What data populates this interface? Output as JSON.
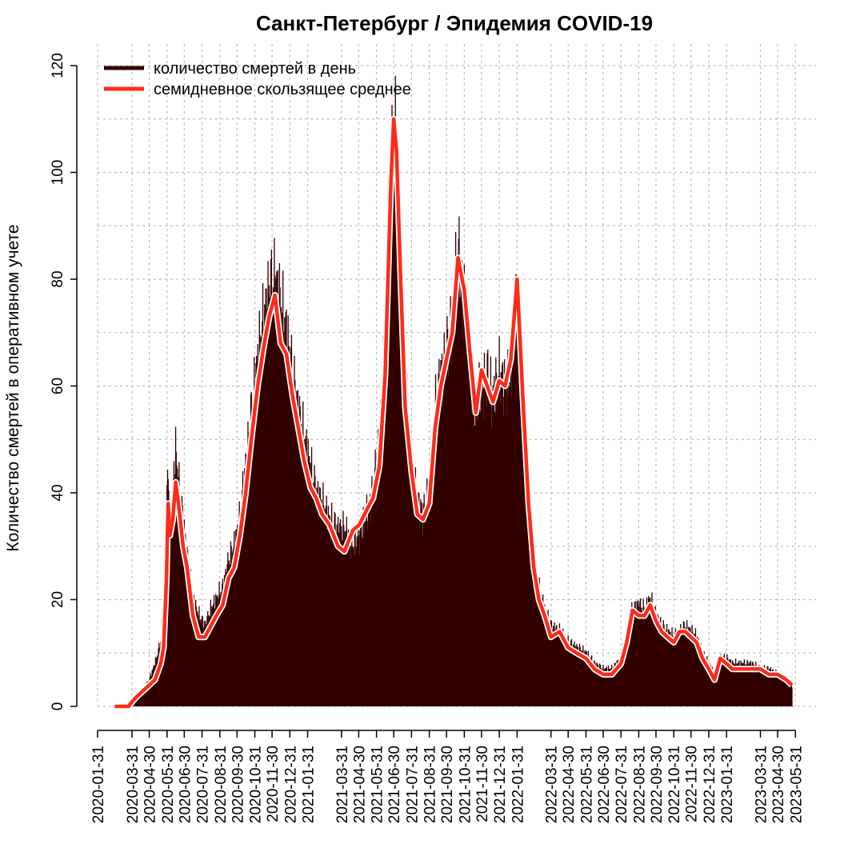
{
  "chart_data": {
    "type": "bar",
    "title": "Санкт-Петербург / Эпидемия COVID-19",
    "xlabel": "",
    "ylabel": "Количество смертей в оперативном учете",
    "x_range": [
      "2020-01-31",
      "2023-06-01"
    ],
    "ylim": [
      0,
      120
    ],
    "y_ticks": [
      0,
      20,
      40,
      60,
      80,
      100,
      120
    ],
    "x_ticks": [
      "2020-01-31",
      "2020-03-31",
      "2020-04-30",
      "2020-05-31",
      "2020-06-30",
      "2020-07-31",
      "2020-08-31",
      "2020-09-30",
      "2020-10-31",
      "2020-11-30",
      "2020-12-31",
      "2021-01-31",
      "2021-03-31",
      "2021-04-30",
      "2021-05-31",
      "2021-06-30",
      "2021-07-31",
      "2021-08-31",
      "2021-09-30",
      "2021-10-31",
      "2021-11-30",
      "2021-12-31",
      "2022-01-31",
      "2022-03-31",
      "2022-04-30",
      "2022-05-31",
      "2022-06-30",
      "2022-07-31",
      "2022-08-31",
      "2022-09-30",
      "2022-10-31",
      "2022-11-30",
      "2022-12-31",
      "2023-01-31",
      "2023-03-31",
      "2023-04-30",
      "2023-05-31"
    ],
    "grid": true,
    "legend_position": "top-left",
    "colors": {
      "daily": "#330000",
      "average": "#ff2a1a"
    },
    "series": [
      {
        "name": "количество смертей в день",
        "kind": "bar",
        "points": [
          [
            "2020-03-01",
            0
          ],
          [
            "2020-03-15",
            0
          ],
          [
            "2020-03-25",
            0
          ],
          [
            "2020-04-01",
            1
          ],
          [
            "2020-04-10",
            2
          ],
          [
            "2020-04-20",
            3
          ],
          [
            "2020-04-30",
            5
          ],
          [
            "2020-05-10",
            8
          ],
          [
            "2020-05-20",
            12
          ],
          [
            "2020-05-25",
            20
          ],
          [
            "2020-05-30",
            35
          ],
          [
            "2020-06-02",
            45
          ],
          [
            "2020-06-05",
            32
          ],
          [
            "2020-06-10",
            40
          ],
          [
            "2020-06-15",
            48
          ],
          [
            "2020-06-20",
            42
          ],
          [
            "2020-06-28",
            35
          ],
          [
            "2020-07-05",
            28
          ],
          [
            "2020-07-15",
            20
          ],
          [
            "2020-07-25",
            17
          ],
          [
            "2020-08-05",
            15
          ],
          [
            "2020-08-15",
            18
          ],
          [
            "2020-08-25",
            20
          ],
          [
            "2020-09-05",
            22
          ],
          [
            "2020-09-15",
            27
          ],
          [
            "2020-09-25",
            30
          ],
          [
            "2020-10-05",
            35
          ],
          [
            "2020-10-15",
            45
          ],
          [
            "2020-10-25",
            55
          ],
          [
            "2020-11-05",
            65
          ],
          [
            "2020-11-15",
            72
          ],
          [
            "2020-11-25",
            78
          ],
          [
            "2020-12-05",
            80
          ],
          [
            "2020-12-15",
            75
          ],
          [
            "2020-12-25",
            70
          ],
          [
            "2021-01-05",
            62
          ],
          [
            "2021-01-15",
            55
          ],
          [
            "2021-01-25",
            50
          ],
          [
            "2021-02-05",
            45
          ],
          [
            "2021-02-15",
            40
          ],
          [
            "2021-02-25",
            38
          ],
          [
            "2021-03-10",
            35
          ],
          [
            "2021-03-25",
            33
          ],
          [
            "2021-04-05",
            33
          ],
          [
            "2021-04-20",
            30
          ],
          [
            "2021-05-01",
            32
          ],
          [
            "2021-05-15",
            36
          ],
          [
            "2021-05-25",
            40
          ],
          [
            "2021-06-05",
            50
          ],
          [
            "2021-06-15",
            70
          ],
          [
            "2021-06-25",
            100
          ],
          [
            "2021-06-30",
            108
          ],
          [
            "2021-07-05",
            105
          ],
          [
            "2021-07-12",
            85
          ],
          [
            "2021-07-20",
            60
          ],
          [
            "2021-07-31",
            45
          ],
          [
            "2021-08-10",
            38
          ],
          [
            "2021-08-20",
            36
          ],
          [
            "2021-08-31",
            40
          ],
          [
            "2021-09-10",
            55
          ],
          [
            "2021-09-20",
            62
          ],
          [
            "2021-09-30",
            66
          ],
          [
            "2021-10-10",
            72
          ],
          [
            "2021-10-20",
            85
          ],
          [
            "2021-10-31",
            76
          ],
          [
            "2021-11-10",
            65
          ],
          [
            "2021-11-20",
            55
          ],
          [
            "2021-11-30",
            60
          ],
          [
            "2021-12-10",
            62
          ],
          [
            "2021-12-20",
            58
          ],
          [
            "2021-12-31",
            62
          ],
          [
            "2022-01-10",
            60
          ],
          [
            "2022-01-20",
            62
          ],
          [
            "2022-01-31",
            78
          ],
          [
            "2022-02-10",
            60
          ],
          [
            "2022-02-20",
            40
          ],
          [
            "2022-03-01",
            28
          ],
          [
            "2022-03-10",
            22
          ],
          [
            "2022-03-20",
            18
          ],
          [
            "2022-03-31",
            15
          ],
          [
            "2022-04-15",
            14
          ],
          [
            "2022-04-30",
            12
          ],
          [
            "2022-05-15",
            11
          ],
          [
            "2022-05-31",
            10
          ],
          [
            "2022-06-15",
            8
          ],
          [
            "2022-06-30",
            7
          ],
          [
            "2022-07-15",
            7
          ],
          [
            "2022-07-31",
            9
          ],
          [
            "2022-08-10",
            13
          ],
          [
            "2022-08-20",
            18
          ],
          [
            "2022-08-31",
            19
          ],
          [
            "2022-09-10",
            18
          ],
          [
            "2022-09-20",
            20
          ],
          [
            "2022-09-30",
            17
          ],
          [
            "2022-10-10",
            15
          ],
          [
            "2022-10-20",
            14
          ],
          [
            "2022-10-31",
            13
          ],
          [
            "2022-11-10",
            14
          ],
          [
            "2022-11-20",
            15
          ],
          [
            "2022-11-30",
            14
          ],
          [
            "2022-12-10",
            13
          ],
          [
            "2022-12-20",
            10
          ],
          [
            "2022-12-31",
            8
          ],
          [
            "2023-01-10",
            6
          ],
          [
            "2023-01-20",
            9
          ],
          [
            "2023-01-31",
            9
          ],
          [
            "2023-02-10",
            8
          ],
          [
            "2023-02-28",
            8
          ],
          [
            "2023-03-15",
            8
          ],
          [
            "2023-03-31",
            7
          ],
          [
            "2023-04-15",
            7
          ],
          [
            "2023-04-30",
            6
          ],
          [
            "2023-05-15",
            5
          ],
          [
            "2023-05-25",
            4
          ]
        ]
      },
      {
        "name": "семидневное скользящее среднее",
        "kind": "line",
        "points": [
          [
            "2020-03-01",
            0
          ],
          [
            "2020-03-15",
            0
          ],
          [
            "2020-03-25",
            0
          ],
          [
            "2020-04-01",
            1
          ],
          [
            "2020-04-10",
            2
          ],
          [
            "2020-04-20",
            3
          ],
          [
            "2020-04-30",
            4
          ],
          [
            "2020-05-10",
            5
          ],
          [
            "2020-05-20",
            8
          ],
          [
            "2020-05-25",
            11
          ],
          [
            "2020-05-30",
            24
          ],
          [
            "2020-06-02",
            38
          ],
          [
            "2020-06-05",
            32
          ],
          [
            "2020-06-10",
            35
          ],
          [
            "2020-06-15",
            42
          ],
          [
            "2020-06-20",
            38
          ],
          [
            "2020-06-28",
            30
          ],
          [
            "2020-07-05",
            26
          ],
          [
            "2020-07-15",
            17
          ],
          [
            "2020-07-25",
            13
          ],
          [
            "2020-08-05",
            13
          ],
          [
            "2020-08-15",
            15
          ],
          [
            "2020-08-25",
            17
          ],
          [
            "2020-09-05",
            19
          ],
          [
            "2020-09-15",
            24
          ],
          [
            "2020-09-25",
            26
          ],
          [
            "2020-10-05",
            32
          ],
          [
            "2020-10-15",
            40
          ],
          [
            "2020-10-25",
            50
          ],
          [
            "2020-11-05",
            60
          ],
          [
            "2020-11-15",
            67
          ],
          [
            "2020-11-25",
            73
          ],
          [
            "2020-12-05",
            77
          ],
          [
            "2020-12-15",
            68
          ],
          [
            "2020-12-25",
            66
          ],
          [
            "2021-01-05",
            58
          ],
          [
            "2021-01-15",
            52
          ],
          [
            "2021-01-25",
            46
          ],
          [
            "2021-02-05",
            41
          ],
          [
            "2021-02-15",
            39
          ],
          [
            "2021-02-25",
            36
          ],
          [
            "2021-03-10",
            34
          ],
          [
            "2021-03-25",
            30
          ],
          [
            "2021-04-05",
            29
          ],
          [
            "2021-04-20",
            33
          ],
          [
            "2021-05-01",
            34
          ],
          [
            "2021-05-15",
            37
          ],
          [
            "2021-05-25",
            39
          ],
          [
            "2021-06-05",
            45
          ],
          [
            "2021-06-15",
            62
          ],
          [
            "2021-06-25",
            98
          ],
          [
            "2021-06-30",
            110
          ],
          [
            "2021-07-05",
            104
          ],
          [
            "2021-07-12",
            80
          ],
          [
            "2021-07-20",
            56
          ],
          [
            "2021-07-31",
            44
          ],
          [
            "2021-08-10",
            36
          ],
          [
            "2021-08-20",
            35
          ],
          [
            "2021-08-31",
            38
          ],
          [
            "2021-09-10",
            52
          ],
          [
            "2021-09-20",
            60
          ],
          [
            "2021-09-30",
            65
          ],
          [
            "2021-10-10",
            70
          ],
          [
            "2021-10-20",
            84
          ],
          [
            "2021-10-31",
            78
          ],
          [
            "2021-11-10",
            66
          ],
          [
            "2021-11-20",
            55
          ],
          [
            "2021-11-30",
            63
          ],
          [
            "2021-12-10",
            60
          ],
          [
            "2021-12-20",
            57
          ],
          [
            "2021-12-31",
            61
          ],
          [
            "2022-01-10",
            60
          ],
          [
            "2022-01-20",
            65
          ],
          [
            "2022-01-31",
            80
          ],
          [
            "2022-02-10",
            58
          ],
          [
            "2022-02-20",
            38
          ],
          [
            "2022-03-01",
            26
          ],
          [
            "2022-03-10",
            20
          ],
          [
            "2022-03-20",
            17
          ],
          [
            "2022-03-31",
            13
          ],
          [
            "2022-04-15",
            14
          ],
          [
            "2022-04-30",
            11
          ],
          [
            "2022-05-15",
            10
          ],
          [
            "2022-05-31",
            9
          ],
          [
            "2022-06-15",
            7
          ],
          [
            "2022-06-30",
            6
          ],
          [
            "2022-07-15",
            6
          ],
          [
            "2022-07-31",
            8
          ],
          [
            "2022-08-10",
            12
          ],
          [
            "2022-08-20",
            18
          ],
          [
            "2022-08-31",
            17
          ],
          [
            "2022-09-10",
            17
          ],
          [
            "2022-09-20",
            19
          ],
          [
            "2022-09-30",
            16
          ],
          [
            "2022-10-10",
            14
          ],
          [
            "2022-10-20",
            13
          ],
          [
            "2022-10-31",
            12
          ],
          [
            "2022-11-10",
            14
          ],
          [
            "2022-11-20",
            14
          ],
          [
            "2022-11-30",
            13
          ],
          [
            "2022-12-10",
            12
          ],
          [
            "2022-12-20",
            9
          ],
          [
            "2022-12-31",
            7
          ],
          [
            "2023-01-10",
            5
          ],
          [
            "2023-01-20",
            9
          ],
          [
            "2023-01-31",
            8
          ],
          [
            "2023-02-10",
            7
          ],
          [
            "2023-02-28",
            7
          ],
          [
            "2023-03-15",
            7
          ],
          [
            "2023-03-31",
            7
          ],
          [
            "2023-04-15",
            6
          ],
          [
            "2023-04-30",
            6
          ],
          [
            "2023-05-15",
            5
          ],
          [
            "2023-05-25",
            4
          ]
        ]
      }
    ]
  }
}
